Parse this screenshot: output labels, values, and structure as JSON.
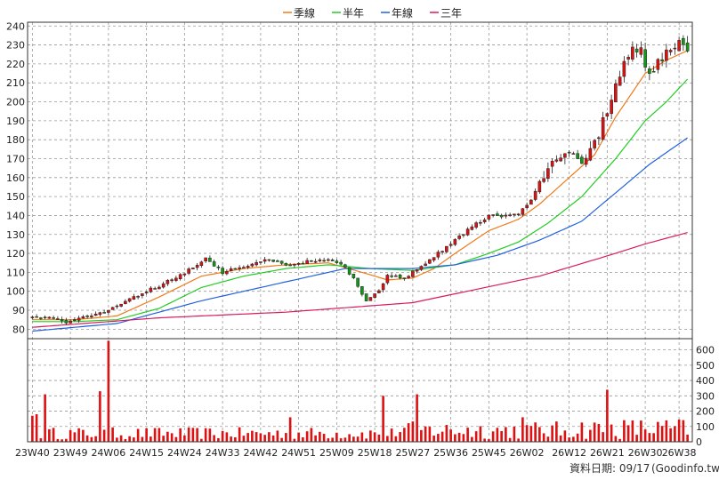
{
  "legend": [
    {
      "label": "季線",
      "color": "#f07a1a"
    },
    {
      "label": "半年",
      "color": "#22cc22"
    },
    {
      "label": "年線",
      "color": "#2060e0"
    },
    {
      "label": "三年",
      "color": "#d81b60"
    }
  ],
  "source_text": "資料日期: 09/17",
  "source_site": "(Goodinfo.tw)",
  "colors": {
    "up": "#dd1111",
    "down": "#119911",
    "volume": "#dd1111",
    "grid": "#999999"
  },
  "chart_data": [
    {
      "type": "candlestick",
      "title": "",
      "grid": true,
      "legend_position": "top-center",
      "y_axis": {
        "side": "left",
        "ylim": [
          75,
          242
        ],
        "ticks": [
          80,
          90,
          100,
          110,
          120,
          130,
          140,
          150,
          160,
          170,
          180,
          190,
          200,
          210,
          220,
          230,
          240
        ]
      },
      "x_axis": {
        "n_weeks": 156,
        "tick_labels": [
          "23W40",
          "23W49",
          "24W06",
          "24W15",
          "24W24",
          "24W33",
          "24W42",
          "24W51",
          "25W09",
          "25W18",
          "25W27",
          "25W36",
          "25W45",
          "26W02",
          "26W12",
          "26W21",
          "26W30",
          "26W38"
        ],
        "tick_index": [
          0,
          9,
          18,
          27,
          36,
          45,
          54,
          63,
          72,
          81,
          90,
          99,
          108,
          117,
          127,
          136,
          145,
          153
        ]
      },
      "close_anchors": [
        [
          0,
          86
        ],
        [
          4,
          87
        ],
        [
          8,
          84
        ],
        [
          12,
          86
        ],
        [
          18,
          90
        ],
        [
          24,
          97
        ],
        [
          30,
          103
        ],
        [
          36,
          110
        ],
        [
          41,
          117
        ],
        [
          45,
          110
        ],
        [
          50,
          113
        ],
        [
          55,
          117
        ],
        [
          60,
          114
        ],
        [
          65,
          116
        ],
        [
          70,
          116
        ],
        [
          74,
          113
        ],
        [
          77,
          103
        ],
        [
          79,
          95
        ],
        [
          82,
          101
        ],
        [
          84,
          108
        ],
        [
          88,
          107
        ],
        [
          92,
          113
        ],
        [
          96,
          120
        ],
        [
          100,
          127
        ],
        [
          104,
          134
        ],
        [
          108,
          140
        ],
        [
          111,
          139
        ],
        [
          115,
          141
        ],
        [
          118,
          148
        ],
        [
          121,
          162
        ],
        [
          124,
          170
        ],
        [
          127,
          175
        ],
        [
          130,
          168
        ],
        [
          134,
          183
        ],
        [
          137,
          202
        ],
        [
          140,
          220
        ],
        [
          142,
          230
        ],
        [
          144,
          227
        ],
        [
          146,
          214
        ],
        [
          148,
          222
        ],
        [
          150,
          226
        ],
        [
          152,
          229
        ],
        [
          153,
          233
        ],
        [
          155,
          228
        ]
      ],
      "moving_averages": [
        {
          "name": "季線",
          "anchors": [
            [
              0,
              85
            ],
            [
              10,
              85
            ],
            [
              20,
              87
            ],
            [
              30,
              97
            ],
            [
              40,
              108
            ],
            [
              50,
              112
            ],
            [
              60,
              114
            ],
            [
              70,
              115
            ],
            [
              78,
              110
            ],
            [
              84,
              106
            ],
            [
              90,
              107
            ],
            [
              95,
              112
            ],
            [
              100,
              120
            ],
            [
              108,
              132
            ],
            [
              115,
              138
            ],
            [
              120,
              146
            ],
            [
              127,
              160
            ],
            [
              133,
              172
            ],
            [
              138,
              192
            ],
            [
              145,
              215
            ],
            [
              150,
              222
            ],
            [
              155,
              227
            ]
          ]
        },
        {
          "name": "半年",
          "anchors": [
            [
              0,
              84
            ],
            [
              10,
              84
            ],
            [
              20,
              85
            ],
            [
              30,
              91
            ],
            [
              40,
              102
            ],
            [
              50,
              108
            ],
            [
              60,
              112
            ],
            [
              70,
              114
            ],
            [
              80,
              112
            ],
            [
              90,
              111
            ],
            [
              100,
              114
            ],
            [
              108,
              120
            ],
            [
              115,
              126
            ],
            [
              122,
              136
            ],
            [
              130,
              150
            ],
            [
              138,
              170
            ],
            [
              145,
              190
            ],
            [
              150,
              200
            ],
            [
              155,
              212
            ]
          ]
        },
        {
          "name": "年線",
          "anchors": [
            [
              0,
              79
            ],
            [
              20,
              83
            ],
            [
              40,
              95
            ],
            [
              60,
              105
            ],
            [
              74,
              112
            ],
            [
              90,
              112
            ],
            [
              100,
              114
            ],
            [
              110,
              119
            ],
            [
              120,
              127
            ],
            [
              130,
              137
            ],
            [
              138,
              152
            ],
            [
              146,
              167
            ],
            [
              155,
              181
            ]
          ]
        },
        {
          "name": "三年",
          "anchors": [
            [
              0,
              81
            ],
            [
              30,
              86
            ],
            [
              60,
              89
            ],
            [
              90,
              94
            ],
            [
              105,
              101
            ],
            [
              120,
              108
            ],
            [
              135,
              118
            ],
            [
              145,
              125
            ],
            [
              155,
              131
            ]
          ]
        }
      ],
      "volume": {
        "side": "right",
        "ylim": [
          0,
          650
        ],
        "ticks": [
          0,
          100,
          200,
          300,
          400,
          500,
          600
        ],
        "peaks": [
          [
            0,
            170
          ],
          [
            1,
            180
          ],
          [
            3,
            310
          ],
          [
            18,
            660
          ],
          [
            16,
            330
          ],
          [
            83,
            300
          ],
          [
            91,
            310
          ],
          [
            136,
            340
          ],
          [
            61,
            160
          ],
          [
            116,
            160
          ]
        ]
      }
    }
  ]
}
